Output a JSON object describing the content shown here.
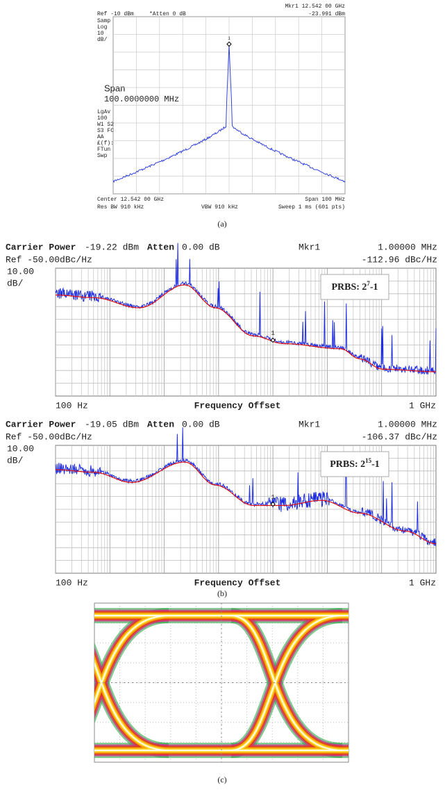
{
  "panel_a": {
    "marker": "Mkr1  12.542 00 GHz",
    "ref": "Ref -10 dBm",
    "atten": "*Atten 0 dB",
    "marker_level": "-23.991 dBm",
    "left_labels_top": [
      "Samp",
      "Log",
      "10",
      "dB/"
    ],
    "left_labels_bottom": [
      "LgAv",
      "100",
      "W1  S2",
      "S3  FC",
      "AA",
      "£(f):",
      "FTun",
      "Swp"
    ],
    "span_label": "Span",
    "span_value": "100.0000000 MHz",
    "marker_id": "1",
    "center": "Center 12.542 00 GHz",
    "span": "Span 100 MHz",
    "res_bw": "Res BW 910 kHz",
    "vbw": "VBW 910 kHz",
    "sweep": "Sweep 1 ms (601 pts)",
    "caption": "(a)"
  },
  "panel_b": {
    "plots": [
      {
        "carrier_label": "Carrier Power",
        "carrier_value": "-19.22 dBm",
        "atten_label": "Atten",
        "atten_value": "0.00 dB",
        "marker": "Mkr1",
        "marker_freq": "1.00000 MHz",
        "ref": "Ref -50.00dBc/Hz",
        "marker_level": "-112.96 dBc/Hz",
        "scale": "10.00",
        "scale_unit": "dB/",
        "prbs_base": "PRBS: 2",
        "prbs_exp": "7",
        "prbs_tail": "-1",
        "marker_id": "1",
        "x_start": "100 Hz",
        "x_label": "Frequency Offset",
        "x_end": "1 GHz"
      },
      {
        "carrier_label": "Carrier Power",
        "carrier_value": "-19.05 dBm",
        "atten_label": "Atten",
        "atten_value": "0.00 dB",
        "marker": "Mkr1",
        "marker_freq": "1.00000 MHz",
        "ref": "Ref -50.00dBc/Hz",
        "marker_level": "-106.37 dBc/Hz",
        "scale": "10.00",
        "scale_unit": "dB/",
        "prbs_base": "PRBS: 2",
        "prbs_exp": "15",
        "prbs_tail": "-1",
        "marker_id": "1",
        "x_start": "100 Hz",
        "x_label": "Frequency Offset",
        "x_end": "1 GHz"
      }
    ],
    "caption": "(b)"
  },
  "panel_c": {
    "caption": "(c)"
  }
}
